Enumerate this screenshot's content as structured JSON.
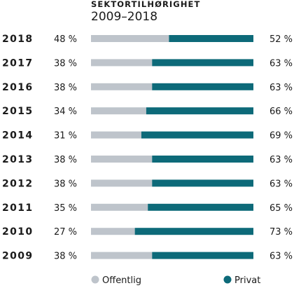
{
  "title": "SEKTORTILHØRIGHET",
  "subtitle": "2009–2018",
  "colors": {
    "offentlig": "#bec4cb",
    "privat": "#0d6a79"
  },
  "chart_data": {
    "type": "bar",
    "orientation": "horizontal",
    "stacked": true,
    "title": "SEKTORTILHØRIGHET",
    "subtitle": "2009–2018",
    "categories": [
      "2018",
      "2017",
      "2016",
      "2015",
      "2014",
      "2013",
      "2012",
      "2011",
      "2010",
      "2009"
    ],
    "series": [
      {
        "name": "Offentlig",
        "values": [
          48,
          38,
          38,
          34,
          31,
          38,
          38,
          35,
          27,
          38
        ],
        "labels": [
          "48 %",
          "38 %",
          "38 %",
          "34 %",
          "31 %",
          "38 %",
          "38 %",
          "35 %",
          "27 %",
          "38 %"
        ]
      },
      {
        "name": "Privat",
        "values": [
          52,
          63,
          63,
          66,
          69,
          63,
          63,
          65,
          73,
          63
        ],
        "labels": [
          "52 %",
          "63 %",
          "63 %",
          "66 %",
          "69 %",
          "63 %",
          "63 %",
          "65 %",
          "73 %",
          "63 %"
        ]
      }
    ],
    "legend_position": "bottom",
    "grid": false
  }
}
